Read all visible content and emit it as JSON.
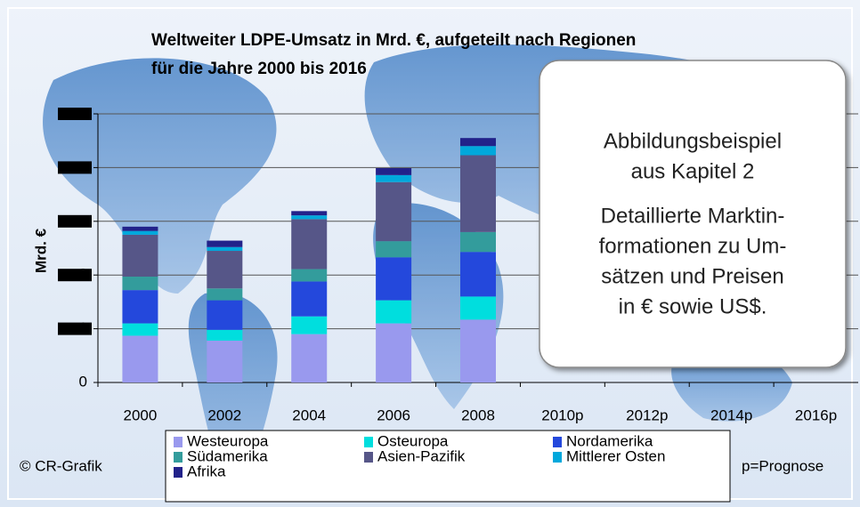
{
  "chart_data": {
    "type": "bar",
    "stacked": true,
    "title": "Weltweiter LDPE-Umsatz in Mrd. €, aufgeteilt nach Regionen",
    "subtitle": "für die Jahre 2000 bis 2016",
    "ylabel": "Mrd. €",
    "categories": [
      "2000",
      "2002",
      "2004",
      "2006",
      "2008",
      "2010p",
      "2012p",
      "2014p",
      "2016p"
    ],
    "series": [
      {
        "name": "Westeuropa",
        "color": "#9999ee",
        "values": [
          0.87,
          0.78,
          0.9,
          1.1,
          1.17,
          null,
          null,
          null,
          null
        ]
      },
      {
        "name": "Osteuropa",
        "color": "#00dede",
        "values": [
          0.23,
          0.2,
          0.33,
          0.43,
          0.43,
          null,
          null,
          null,
          null
        ]
      },
      {
        "name": "Nordamerika",
        "color": "#2448dc",
        "values": [
          0.62,
          0.55,
          0.65,
          0.8,
          0.83,
          null,
          null,
          null,
          null
        ]
      },
      {
        "name": "Südamerika",
        "color": "#339c9c",
        "values": [
          0.25,
          0.22,
          0.23,
          0.3,
          0.37,
          null,
          null,
          null,
          null
        ]
      },
      {
        "name": "Asien-Pazifik",
        "color": "#565688",
        "values": [
          0.78,
          0.7,
          0.93,
          1.1,
          1.43,
          null,
          null,
          null,
          null
        ]
      },
      {
        "name": "Mittlerer Osten",
        "color": "#00a8dc",
        "values": [
          0.07,
          0.07,
          0.07,
          0.13,
          0.17,
          null,
          null,
          null,
          null
        ]
      },
      {
        "name": "Afrika",
        "color": "#22228a",
        "values": [
          0.08,
          0.12,
          0.08,
          0.13,
          0.15,
          null,
          null,
          null,
          null
        ]
      }
    ],
    "ylim": [
      0,
      5
    ],
    "yticks": [
      0,
      1,
      2,
      3,
      4,
      5
    ],
    "grid": true,
    "notes": {
      "copyright": "© CR-Grafik",
      "forecast": "p=Prognose"
    },
    "overlay": {
      "lines": [
        "Abbildungsbeispiel",
        "aus Kapitel 2",
        "Detaillierte Marktin-",
        "formationen zu Um-",
        "sätzen und Preisen",
        "in € sowie US$."
      ]
    }
  }
}
